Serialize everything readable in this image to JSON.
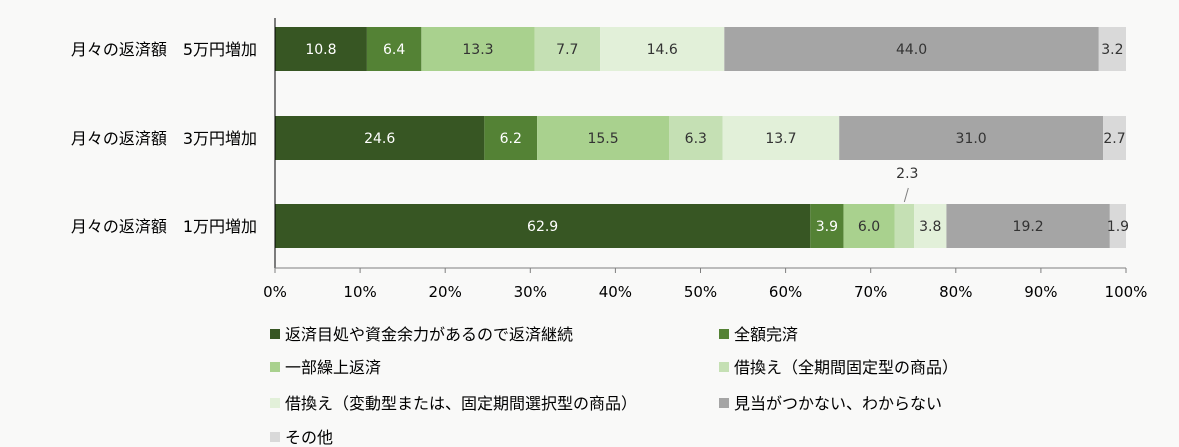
{
  "colors": {
    "background": "#f9f9f8",
    "axis": "#000000",
    "dark_label": "#333333",
    "light_label": "#ffffff"
  },
  "chart_data": {
    "type": "bar",
    "orientation": "horizontal",
    "stacked": true,
    "categories": [
      "月々の返済額　5万円増加",
      "月々の返済額　3万円増加",
      "月々の返済額　1万円増加"
    ],
    "xlim": [
      0,
      100
    ],
    "x_ticks": [
      "0%",
      "10%",
      "20%",
      "30%",
      "40%",
      "50%",
      "60%",
      "70%",
      "80%",
      "90%",
      "100%"
    ],
    "grid": false,
    "legend_position": "bottom",
    "series": [
      {
        "name": "返済目処や資金余力があるので返済継続",
        "color": "#375623",
        "label_color": "#ffffff",
        "values": [
          10.8,
          24.6,
          62.9
        ]
      },
      {
        "name": "全額完済",
        "color": "#548235",
        "label_color": "#ffffff",
        "values": [
          6.4,
          6.2,
          3.9
        ]
      },
      {
        "name": "一部繰上返済",
        "color": "#a9d18e",
        "label_color": "#333333",
        "values": [
          13.3,
          15.5,
          6.0
        ]
      },
      {
        "name": "借換え（全期間固定型の商品）",
        "color": "#c5e0b4",
        "label_color": "#333333",
        "values": [
          7.7,
          6.3,
          2.3
        ]
      },
      {
        "name": "借換え（変動型または、固定期間選択型の商品）",
        "color": "#e2f0d9",
        "label_color": "#333333",
        "values": [
          14.6,
          13.7,
          3.8
        ]
      },
      {
        "name": "見当がつかない、わからない",
        "color": "#a5a5a5",
        "label_color": "#333333",
        "values": [
          44.0,
          31.0,
          19.2
        ]
      },
      {
        "name": "その他",
        "color": "#d9d9d9",
        "label_color": "#333333",
        "values": [
          3.2,
          2.7,
          1.9
        ]
      }
    ],
    "value_labels": [
      [
        "10.8",
        "6.4",
        "13.3",
        "7.7",
        "14.6",
        "44.0",
        "3.2"
      ],
      [
        "24.6",
        "6.2",
        "15.5",
        "6.3",
        "13.7",
        "31.0",
        "2.7"
      ],
      [
        "62.9",
        "3.9",
        "6.0",
        "2.3",
        "3.8",
        "19.2",
        "1.9"
      ]
    ],
    "callout": {
      "category_index": 2,
      "series_index": 3,
      "text": "2.3"
    }
  }
}
